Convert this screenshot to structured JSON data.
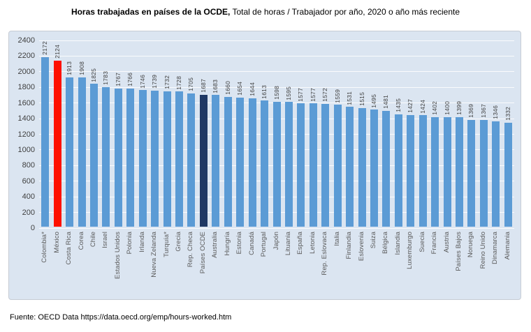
{
  "title": {
    "bold": "Horas trabajadas en países de la OCDE,",
    "regular": "Total de horas / Trabajador por año, 2020 o año más reciente"
  },
  "footer": "Fuente: OECD Data https://data.oecd.org/emp/hours-worked.htm",
  "chart_data": {
    "type": "bar",
    "title": "Horas trabajadas en países de la OCDE, Total de horas / Trabajador por año, 2020 o año más reciente",
    "xlabel": "",
    "ylabel": "",
    "ylim": [
      0,
      2400
    ],
    "ytick_step": 200,
    "grid": true,
    "legend": "none",
    "value_labels": true,
    "labels_rotated_degrees": 90,
    "categories": [
      "Colombia*",
      "México",
      "Costa Rica",
      "Corea",
      "Chile",
      "Israel",
      "Estados Unidos",
      "Polonia",
      "Irlanda",
      "Nueva Zelanda",
      "Turquía*",
      "Grecia",
      "Rep. Checa",
      "Países OCDE",
      "Australia",
      "Hungría",
      "Estonia",
      "Canadá",
      "Portugal",
      "Japón",
      "Lituania",
      "España",
      "Letonia",
      "Rep. Eslovaca",
      "Italia",
      "Finlandia",
      "Eslovenia",
      "Suiza",
      "Bélgica",
      "Islandia",
      "Luxemburgo",
      "Suecia",
      "Francia",
      "Austria",
      "Países Bajos",
      "Noruega",
      "Reino Unido",
      "Dinamarca",
      "Alemania"
    ],
    "values": [
      2172,
      2124,
      1913,
      1908,
      1825,
      1783,
      1767,
      1766,
      1746,
      1739,
      1732,
      1728,
      1705,
      1687,
      1683,
      1660,
      1654,
      1644,
      1613,
      1598,
      1595,
      1577,
      1577,
      1572,
      1559,
      1531,
      1515,
      1495,
      1481,
      1435,
      1427,
      1424,
      1402,
      1400,
      1399,
      1369,
      1367,
      1346,
      1332
    ],
    "colors": {
      "bar_default": "#5b9bd5",
      "plot_background": "#dbe5f1",
      "gridline": "#ffffff",
      "value_label": "#404040",
      "category_label": "#595959"
    },
    "highlighted_bars": [
      {
        "category": "México",
        "index": 1,
        "color": "#fe1100"
      },
      {
        "category": "Países OCDE",
        "index": 13,
        "color": "#1f3864"
      }
    ]
  }
}
